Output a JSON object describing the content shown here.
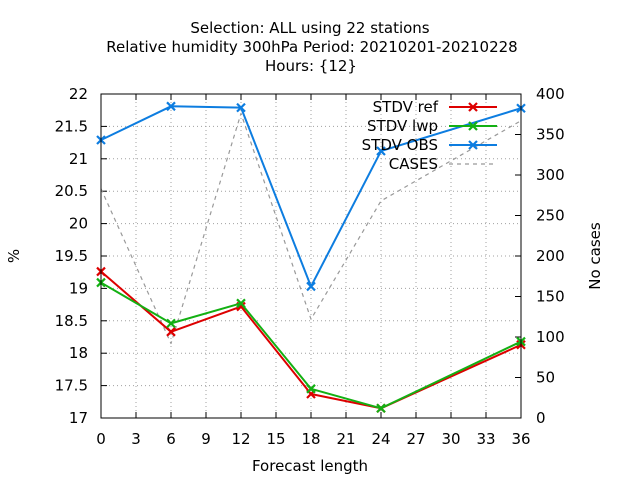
{
  "chart_data": {
    "type": "line",
    "title_lines": [
      "Selection: ALL using    22 stations",
      "Relative humidity 300hPa   Period: 20210201-20210228",
      "Hours: {12}"
    ],
    "xlabel": "Forecast length",
    "ylabel": "%",
    "y2label": "No cases",
    "x": [
      0,
      6,
      12,
      18,
      24,
      36
    ],
    "xlim": [
      0,
      36
    ],
    "xticks": [
      0,
      3,
      6,
      9,
      12,
      15,
      18,
      21,
      24,
      27,
      30,
      33,
      36
    ],
    "ylim": [
      17,
      22
    ],
    "yticks": [
      "17",
      "17.5",
      "18",
      "18.5",
      "19",
      "19.5",
      "20",
      "20.5",
      "21",
      "21.5",
      "22"
    ],
    "y2lim": [
      0,
      400
    ],
    "y2ticks": [
      0,
      50,
      100,
      150,
      200,
      250,
      300,
      350,
      400
    ],
    "grid": true,
    "legend_position": "top-right",
    "series": [
      {
        "name": "STDV ref",
        "axis": "y",
        "color": "#dd0000",
        "dash": "",
        "marker": "x",
        "values": [
          19.26,
          18.33,
          18.72,
          17.37,
          17.15,
          18.13
        ]
      },
      {
        "name": "STDV lwp",
        "axis": "y",
        "color": "#13b013",
        "dash": "",
        "marker": "x",
        "values": [
          19.09,
          18.46,
          18.77,
          17.45,
          17.15,
          18.18
        ]
      },
      {
        "name": "STDV OBS",
        "axis": "y",
        "color": "#0d7de0",
        "dash": "",
        "marker": "x",
        "values": [
          21.29,
          21.81,
          21.79,
          19.03,
          21.12,
          21.78
        ]
      },
      {
        "name": "CASES",
        "axis": "y2",
        "color": "#999999",
        "dash": "4,4",
        "marker": "",
        "values": [
          283,
          92,
          376,
          122,
          268,
          367
        ]
      }
    ]
  }
}
